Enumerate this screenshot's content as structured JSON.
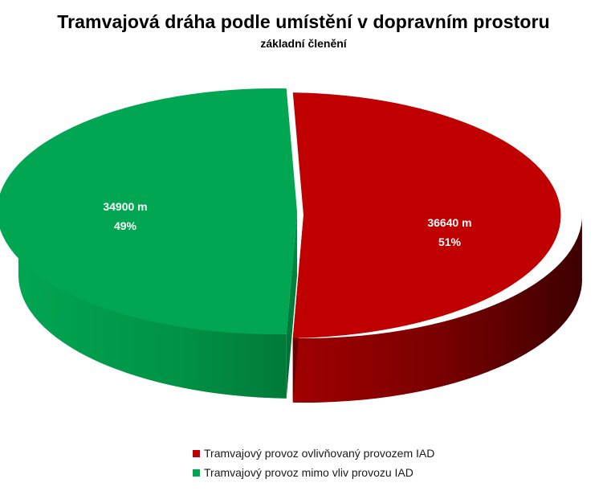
{
  "chart_data": {
    "type": "pie",
    "title": "Tramvajová dráha podle umístění v dopravním prostoru",
    "subtitle": "základní členění",
    "series": [
      {
        "name": "Tramvajový provoz ovlivňovaný provozem IAD",
        "value": 36640,
        "value_label": "36640 m",
        "percent_label": "51%",
        "color": "#c00000",
        "side_color": "#7a0000"
      },
      {
        "name": "Tramvajový provoz mimo vliv provozu IAD",
        "value": 34900,
        "value_label": "34900 m",
        "percent_label": "49%",
        "color": "#00a651",
        "side_color": "#00853f"
      }
    ],
    "legend_position": "bottom"
  }
}
